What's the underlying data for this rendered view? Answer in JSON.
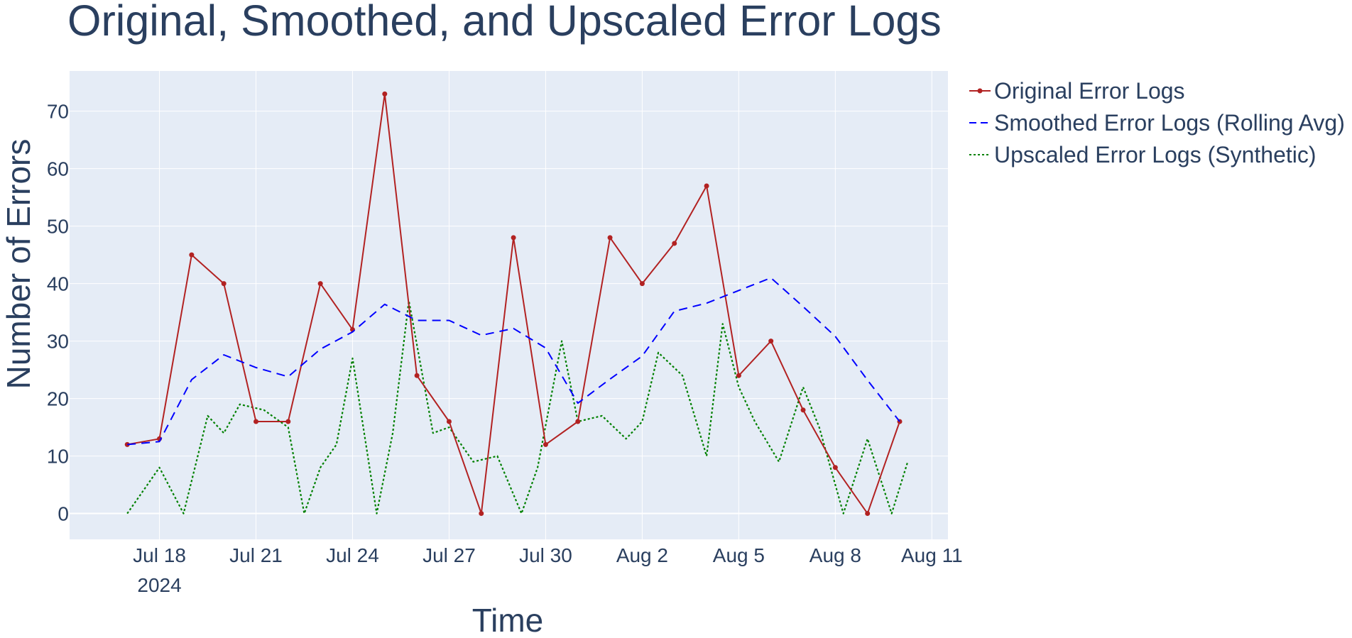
{
  "chart_data": {
    "type": "line",
    "title": "Original, Smoothed, and Upscaled Error Logs",
    "xlabel": "Time",
    "ylabel": "Number of Errors",
    "x_tick_labels": [
      "Jul 18",
      "Jul 21",
      "Jul 24",
      "Jul 27",
      "Jul 30",
      "Aug 2",
      "Aug 5",
      "Aug 8",
      "Aug 11"
    ],
    "x_tick_dates": [
      "2024-07-18",
      "2024-07-21",
      "2024-07-24",
      "2024-07-27",
      "2024-07-30",
      "2024-08-02",
      "2024-08-05",
      "2024-08-08",
      "2024-08-11"
    ],
    "x_year_label": "2024",
    "xlim": [
      "2024-07-15T05:00",
      "2024-08-11T12:00"
    ],
    "y_ticks": [
      0,
      10,
      20,
      30,
      40,
      50,
      60,
      70
    ],
    "ylim": [
      -4.5,
      77
    ],
    "grid": true,
    "legend_position": "right",
    "colors": {
      "plot_bg": "#e5ecf6",
      "grid": "#ffffff",
      "text": "#2a3f5f"
    },
    "series": [
      {
        "name": "Original Error Logs",
        "color": "#b22222",
        "style": "solid-markers",
        "x": [
          "2024-07-17",
          "2024-07-18",
          "2024-07-19",
          "2024-07-20",
          "2024-07-21",
          "2024-07-22",
          "2024-07-23",
          "2024-07-24",
          "2024-07-25",
          "2024-07-26",
          "2024-07-27",
          "2024-07-28",
          "2024-07-29",
          "2024-07-30",
          "2024-07-31",
          "2024-08-01",
          "2024-08-02",
          "2024-08-03",
          "2024-08-04",
          "2024-08-05",
          "2024-08-06",
          "2024-08-07",
          "2024-08-08",
          "2024-08-09",
          "2024-08-10"
        ],
        "y": [
          12,
          13,
          45,
          40,
          16,
          16,
          40,
          32,
          73,
          24,
          16,
          0,
          48,
          12,
          16,
          48,
          40,
          47,
          57,
          24,
          30,
          18,
          8,
          0,
          16
        ]
      },
      {
        "name": "Smoothed Error Logs (Rolling Avg)",
        "color": "#0000ff",
        "style": "dash",
        "x": [
          "2024-07-17",
          "2024-07-18",
          "2024-07-19",
          "2024-07-20",
          "2024-07-21",
          "2024-07-22",
          "2024-07-23",
          "2024-07-24",
          "2024-07-25",
          "2024-07-26",
          "2024-07-27",
          "2024-07-28",
          "2024-07-29",
          "2024-07-30",
          "2024-07-31",
          "2024-08-01",
          "2024-08-02",
          "2024-08-03",
          "2024-08-04",
          "2024-08-05",
          "2024-08-06",
          "2024-08-07",
          "2024-08-08",
          "2024-08-09",
          "2024-08-10"
        ],
        "y": [
          12,
          12.5,
          23.3,
          27.6,
          25.4,
          23.8,
          28.6,
          31.6,
          36.4,
          33.6,
          33.6,
          31.0,
          32.2,
          28.8,
          19.2,
          23.4,
          27.4,
          35.2,
          36.6,
          38.8,
          41.0,
          36.0,
          30.8,
          23.2,
          16.0
        ]
      },
      {
        "name": "Upscaled Error Logs (Synthetic)",
        "color": "#008000",
        "style": "dot",
        "x": [
          "2024-07-17T00:00",
          "2024-07-17T12:00",
          "2024-07-18T00:00",
          "2024-07-18T18:00",
          "2024-07-19T12:00",
          "2024-07-20T00:00",
          "2024-07-20T12:00",
          "2024-07-21T06:00",
          "2024-07-22T00:00",
          "2024-07-22T12:00",
          "2024-07-23T00:00",
          "2024-07-23T12:00",
          "2024-07-24T00:00",
          "2024-07-24T18:00",
          "2024-07-25T06:00",
          "2024-07-25T18:00",
          "2024-07-26T12:00",
          "2024-07-27T00:00",
          "2024-07-27T18:00",
          "2024-07-28T12:00",
          "2024-07-29T06:00",
          "2024-07-29T18:00",
          "2024-07-30T12:00",
          "2024-07-31T00:00",
          "2024-07-31T18:00",
          "2024-08-01T12:00",
          "2024-08-02T00:00",
          "2024-08-02T12:00",
          "2024-08-03T06:00",
          "2024-08-04T00:00",
          "2024-08-04T12:00",
          "2024-08-05T00:00",
          "2024-08-05T12:00",
          "2024-08-06T06:00",
          "2024-08-07T00:00",
          "2024-08-07T12:00",
          "2024-08-08T06:00",
          "2024-08-09T00:00",
          "2024-08-09T18:00",
          "2024-08-10T06:00"
        ],
        "y": [
          0,
          4,
          8,
          0,
          17,
          14,
          19,
          18,
          15,
          0,
          8,
          12,
          27,
          0,
          14,
          37,
          14,
          15,
          9,
          10,
          0,
          8,
          30,
          16,
          17,
          13,
          16,
          28,
          24,
          10,
          33,
          22,
          16,
          9,
          22,
          15,
          0,
          13,
          0,
          9
        ]
      }
    ]
  }
}
